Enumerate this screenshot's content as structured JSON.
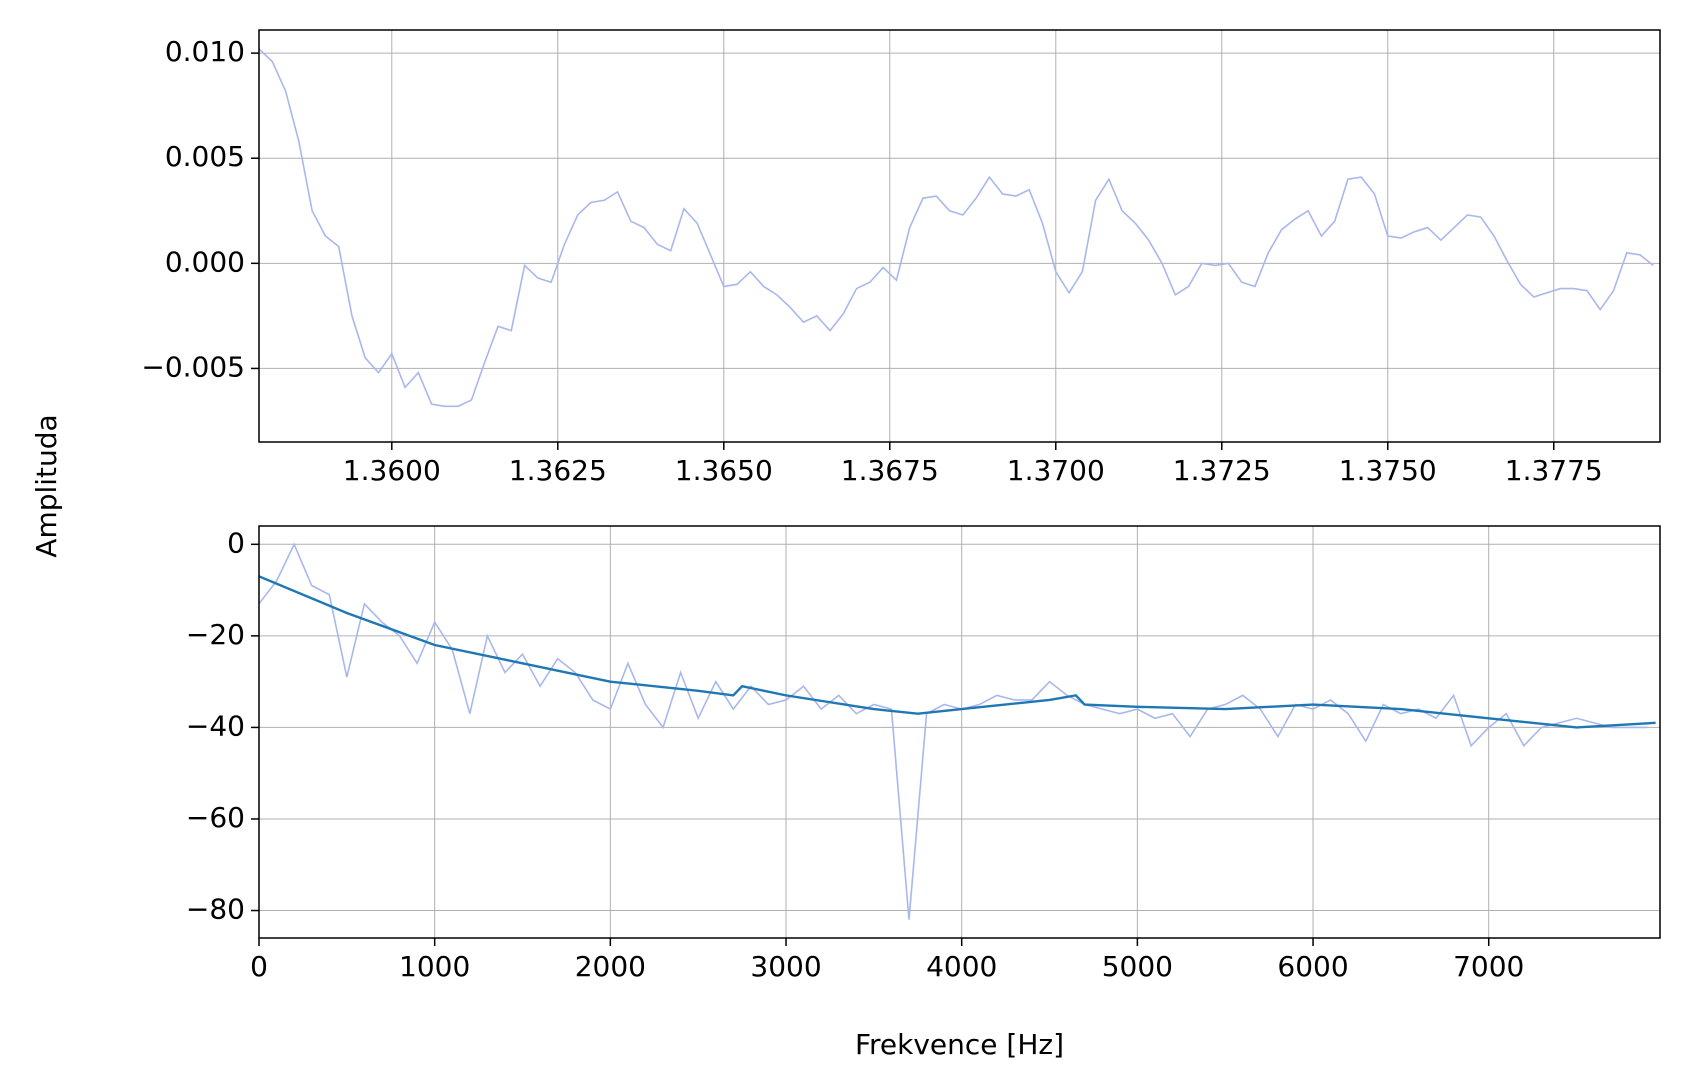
{
  "chart_data": [
    {
      "type": "line",
      "ylabel": "Amplituda",
      "xlim": [
        1.358,
        1.3791
      ],
      "ylim": [
        -0.0085,
        0.0111
      ],
      "grid": true,
      "xticks": [
        {
          "value": 1.36,
          "label": "1.3600"
        },
        {
          "value": 1.3625,
          "label": "1.3625"
        },
        {
          "value": 1.365,
          "label": "1.3650"
        },
        {
          "value": 1.3675,
          "label": "1.3675"
        },
        {
          "value": 1.37,
          "label": "1.3700"
        },
        {
          "value": 1.3725,
          "label": "1.3725"
        },
        {
          "value": 1.375,
          "label": "1.3750"
        },
        {
          "value": 1.3775,
          "label": "1.3775"
        }
      ],
      "yticks": [
        {
          "value": -0.005,
          "label": "−0.005"
        },
        {
          "value": 0,
          "label": "0.000"
        },
        {
          "value": 0.005,
          "label": "0.005"
        },
        {
          "value": 0.01,
          "label": "0.010"
        }
      ],
      "series": [
        {
          "color": "#a8b8ec",
          "x": [
            1.358,
            1.3582,
            1.3584,
            1.3586,
            1.3588,
            1.359,
            1.3592,
            1.3594,
            1.3596,
            1.3598,
            1.36,
            1.3602,
            1.3604,
            1.3606,
            1.3608,
            1.361,
            1.3612,
            1.3614,
            1.3616,
            1.3618,
            1.362,
            1.3622,
            1.3624,
            1.3626,
            1.3628,
            1.363,
            1.3632,
            1.3634,
            1.3636,
            1.3638,
            1.364,
            1.3642,
            1.3644,
            1.3646,
            1.3648,
            1.365,
            1.3652,
            1.3654,
            1.3656,
            1.3658,
            1.366,
            1.3662,
            1.3664,
            1.3666,
            1.3668,
            1.367,
            1.3672,
            1.3674,
            1.3676,
            1.3678,
            1.368,
            1.3682,
            1.3684,
            1.3686,
            1.3688,
            1.369,
            1.3692,
            1.3694,
            1.3696,
            1.3698,
            1.37,
            1.3702,
            1.3704,
            1.3706,
            1.3708,
            1.371,
            1.3712,
            1.3714,
            1.3716,
            1.3718,
            1.372,
            1.3722,
            1.3724,
            1.3726,
            1.3728,
            1.373,
            1.3732,
            1.3734,
            1.3736,
            1.3738,
            1.374,
            1.3742,
            1.3744,
            1.3746,
            1.3748,
            1.375,
            1.3752,
            1.3754,
            1.3756,
            1.3758,
            1.376,
            1.3762,
            1.3764,
            1.3766,
            1.3768,
            1.377,
            1.3772,
            1.3774,
            1.3776,
            1.3778,
            1.378,
            1.3782,
            1.3784,
            1.3786,
            1.3788,
            1.379
          ],
          "values": [
            0.0102,
            0.0096,
            0.0082,
            0.0058,
            0.0025,
            0.0013,
            0.0008,
            -0.0025,
            -0.0045,
            -0.0052,
            -0.0043,
            -0.0059,
            -0.0052,
            -0.0067,
            -0.0068,
            -0.0068,
            -0.0065,
            -0.0047,
            -0.003,
            -0.0032,
            -0.0001,
            -0.0007,
            -0.0009,
            0.0009,
            0.0023,
            0.0029,
            0.003,
            0.0034,
            0.002,
            0.0017,
            0.0009,
            0.0006,
            0.0026,
            0.0019,
            0.0004,
            -0.0011,
            -0.001,
            -0.0004,
            -0.0011,
            -0.0015,
            -0.0021,
            -0.0028,
            -0.0025,
            -0.0032,
            -0.0024,
            -0.0012,
            -0.0009,
            -0.0002,
            -0.0008,
            0.0017,
            0.0031,
            0.0032,
            0.0025,
            0.0023,
            0.0031,
            0.0041,
            0.0033,
            0.0032,
            0.0035,
            0.0019,
            -0.0004,
            -0.0014,
            -0.0004,
            0.003,
            0.004,
            0.0025,
            0.0019,
            0.0011,
            0,
            -0.0015,
            -0.0011,
            0,
            -0.0001,
            0,
            -0.0009,
            -0.0011,
            0.0005,
            0.0016,
            0.0021,
            0.0025,
            0.0013,
            0.002,
            0.004,
            0.0041,
            0.0033,
            0.0013,
            0.0012,
            0.0015,
            0.0017,
            0.0011,
            0.0017,
            0.0023,
            0.0022,
            0.0013,
            0.0001,
            -0.001,
            -0.0016,
            -0.0014,
            -0.0012,
            -0.0012,
            -0.0013,
            -0.0022,
            -0.0013,
            0.0005,
            0.0004,
            -0.0001
          ]
        }
      ]
    },
    {
      "type": "line",
      "xlabel": "Frekvence [Hz]",
      "xlim": [
        0,
        7975
      ],
      "ylim": [
        -86,
        4
      ],
      "grid": true,
      "xticks": [
        0,
        1000,
        2000,
        3000,
        4000,
        5000,
        6000,
        7000
      ],
      "yticks": [
        {
          "value": -80,
          "label": "−80"
        },
        {
          "value": -60,
          "label": "−60"
        },
        {
          "value": -40,
          "label": "−40"
        },
        {
          "value": -20,
          "label": "−20"
        },
        0
      ],
      "series": [
        {
          "color": "#a8b8ec",
          "x": [
            0,
            100,
            200,
            300,
            400,
            500,
            600,
            700,
            800,
            900,
            1000,
            1100,
            1200,
            1300,
            1400,
            1500,
            1600,
            1700,
            1800,
            1900,
            2000,
            2100,
            2200,
            2300,
            2400,
            2500,
            2600,
            2700,
            2800,
            2900,
            3000,
            3100,
            3200,
            3300,
            3400,
            3500,
            3600,
            3700,
            3800,
            3900,
            4000,
            4100,
            4200,
            4300,
            4400,
            4500,
            4600,
            4700,
            4800,
            4900,
            5000,
            5100,
            5200,
            5300,
            5400,
            5500,
            5600,
            5700,
            5800,
            5900,
            6000,
            6100,
            6200,
            6300,
            6400,
            6500,
            6600,
            6700,
            6800,
            6900,
            7000,
            7100,
            7200,
            7300,
            7400,
            7500,
            7600,
            7700,
            7800,
            7900
          ],
          "values": [
            -13,
            -8,
            0,
            -9,
            -11,
            -29,
            -13,
            -17,
            -20,
            -26,
            -17,
            -23,
            -37,
            -20,
            -28,
            -24,
            -31,
            -25,
            -28,
            -34,
            -36,
            -26,
            -35,
            -40,
            -28,
            -38,
            -30,
            -36,
            -31,
            -35,
            -34,
            -31,
            -36,
            -33,
            -37,
            -35,
            -36,
            -82,
            -37,
            -35,
            -36,
            -35,
            -33,
            -34,
            -34,
            -30,
            -33,
            -35,
            -36,
            -37,
            -36,
            -38,
            -37,
            -42,
            -36,
            -35,
            -33,
            -36,
            -42,
            -35,
            -36,
            -34,
            -37,
            -43,
            -35,
            -37,
            -36,
            -38,
            -33,
            -44,
            -40,
            -37,
            -44,
            -40,
            -39,
            -38,
            -39,
            -40,
            -40,
            -40
          ]
        },
        {
          "color": "#1f77b4",
          "x": [
            0,
            500,
            1000,
            1500,
            2000,
            2500,
            2700,
            2750,
            3000,
            3500,
            3750,
            4000,
            4500,
            4650,
            4700,
            5000,
            5500,
            6000,
            6500,
            7000,
            7500,
            7950
          ],
          "values": [
            -7,
            -15,
            -22,
            -26,
            -30,
            -32,
            -33,
            -31,
            -33,
            -36,
            -37,
            -36,
            -34,
            -33,
            -35,
            -35.5,
            -36,
            -35,
            -36,
            -38,
            -40,
            -39
          ]
        }
      ]
    }
  ]
}
